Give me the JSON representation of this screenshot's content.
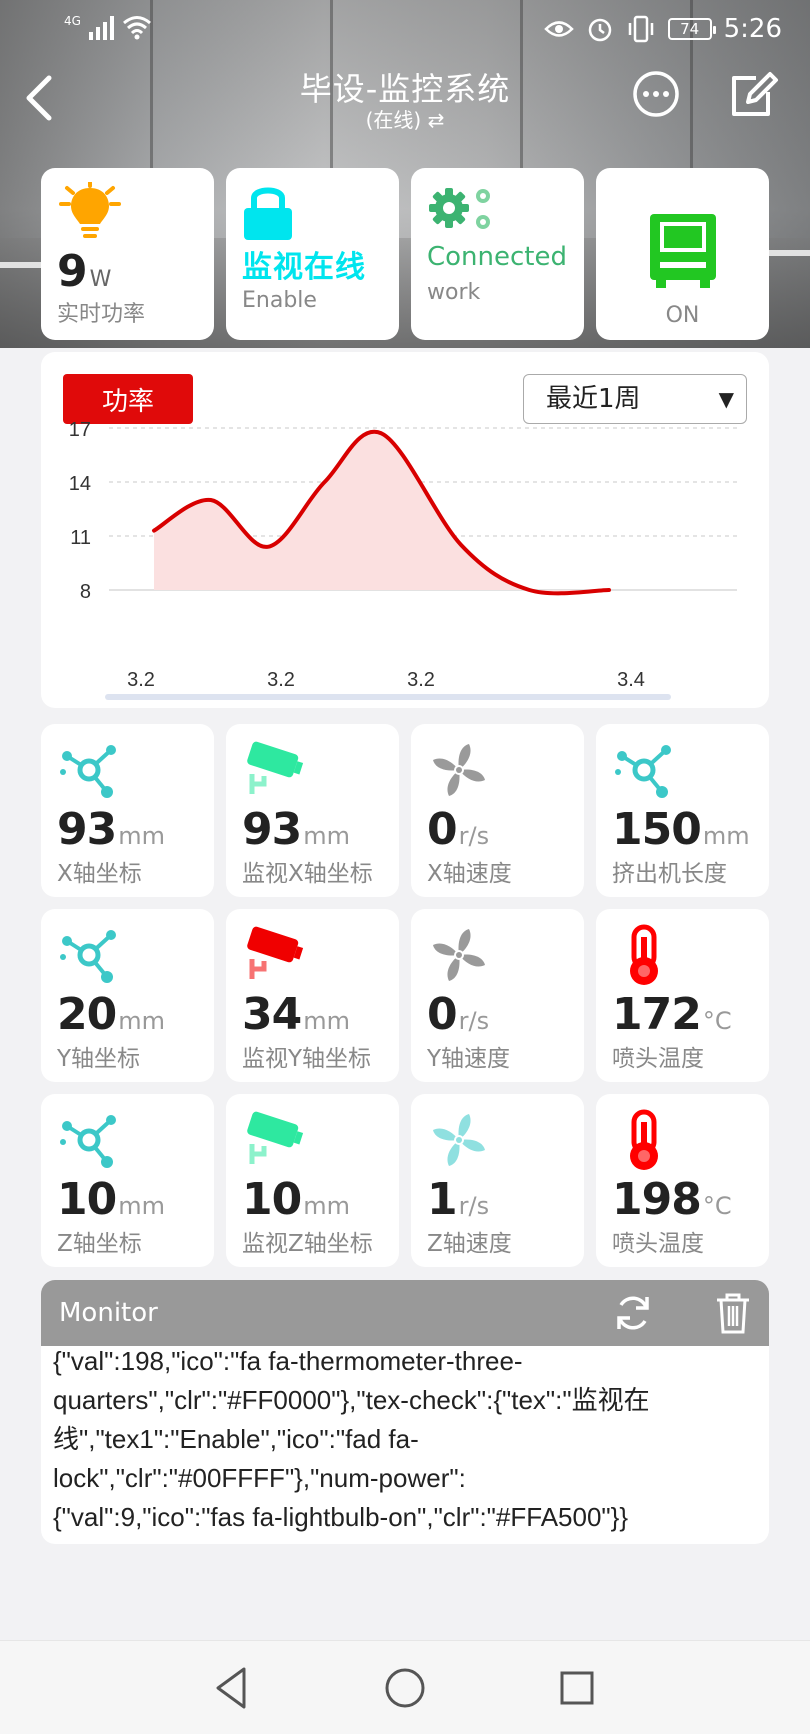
{
  "status_bar": {
    "network": "4G",
    "time": "5:26",
    "battery": "74"
  },
  "nav": {
    "title": "毕设-监控系统",
    "subtitle": "(在线) ⇄"
  },
  "status_cards": {
    "power": {
      "value": "9",
      "unit": "W",
      "caption": "实时功率",
      "color": "#FFA500",
      "icon": "lightbulb-icon"
    },
    "lock": {
      "text": "监视在线",
      "sub": "Enable",
      "color": "#00E5EE",
      "icon": "lock-icon"
    },
    "connection": {
      "text": "Connected",
      "sub": "work",
      "color": "#3CB371",
      "icon": "gears-icon"
    },
    "machine": {
      "text": "ON",
      "color": "#22C722",
      "icon": "computer-icon"
    }
  },
  "chart_header": {
    "badge": "功率",
    "range": "最近1周"
  },
  "chart_data": {
    "type": "area",
    "x": [
      "3.2",
      "3.2",
      "3.2",
      "3.4"
    ],
    "points": [
      {
        "x": 0.0,
        "y": 11.3
      },
      {
        "x": 0.25,
        "y": 13.0
      },
      {
        "x": 0.5,
        "y": 10.4
      },
      {
        "x": 0.75,
        "y": 14.0
      },
      {
        "x": 1.0,
        "y": 16.7
      },
      {
        "x": 1.35,
        "y": 10.5
      },
      {
        "x": 1.65,
        "y": 8.0
      },
      {
        "x": 2.0,
        "y": 8.0
      }
    ],
    "ylim": [
      8,
      17
    ],
    "yticks": [
      8,
      11,
      14,
      17
    ],
    "line_color": "#D80000",
    "fill_color": "#FBE0E0"
  },
  "metrics": [
    {
      "value": "93",
      "unit": "mm",
      "caption": "X轴坐标",
      "icon": "axis-node-icon",
      "color": "#3CC8C8"
    },
    {
      "value": "93",
      "unit": "mm",
      "caption": "监视X轴坐标",
      "icon": "cctv-camera-icon",
      "color": "#2EE8A0"
    },
    {
      "value": "0",
      "unit": "r/s",
      "caption": "X轴速度",
      "icon": "fan-icon",
      "color": "#9A9A9A"
    },
    {
      "value": "150",
      "unit": "mm",
      "caption": "挤出机长度",
      "icon": "axis-node-icon",
      "color": "#3CC8C8"
    },
    {
      "value": "20",
      "unit": "mm",
      "caption": "Y轴坐标",
      "icon": "axis-node-icon",
      "color": "#3CC8C8"
    },
    {
      "value": "34",
      "unit": "mm",
      "caption": "监视Y轴坐标",
      "icon": "cctv-camera-icon",
      "color": "#F00000"
    },
    {
      "value": "0",
      "unit": "r/s",
      "caption": "Y轴速度",
      "icon": "fan-icon",
      "color": "#9A9A9A"
    },
    {
      "value": "172",
      "unit": "°C",
      "caption": "喷头温度",
      "icon": "thermometer-icon",
      "color": "#FF0000"
    },
    {
      "value": "10",
      "unit": "mm",
      "caption": "Z轴坐标",
      "icon": "axis-node-icon",
      "color": "#3CC8C8"
    },
    {
      "value": "10",
      "unit": "mm",
      "caption": "监视Z轴坐标",
      "icon": "cctv-camera-icon",
      "color": "#2EE8A0"
    },
    {
      "value": "1",
      "unit": "r/s",
      "caption": "Z轴速度",
      "icon": "fan-icon",
      "color": "#8FE0E0"
    },
    {
      "value": "198",
      "unit": "°C",
      "caption": "喷头温度",
      "icon": "thermometer-icon",
      "color": "#FF0000"
    }
  ],
  "monitor": {
    "title": "Monitor",
    "log": "{\"val\":198,\"ico\":\"fa fa-thermometer-three-\nquarters\",\"clr\":\"#FF0000\"},\"tex-check\":{\"tex\":\"监视在\n线\",\"tex1\":\"Enable\",\"ico\":\"fad fa-\nlock\",\"clr\":\"#00FFFF\"},\"num-power\":\n{\"val\":9,\"ico\":\"fas fa-lightbulb-on\",\"clr\":\"#FFA500\"}}"
  }
}
